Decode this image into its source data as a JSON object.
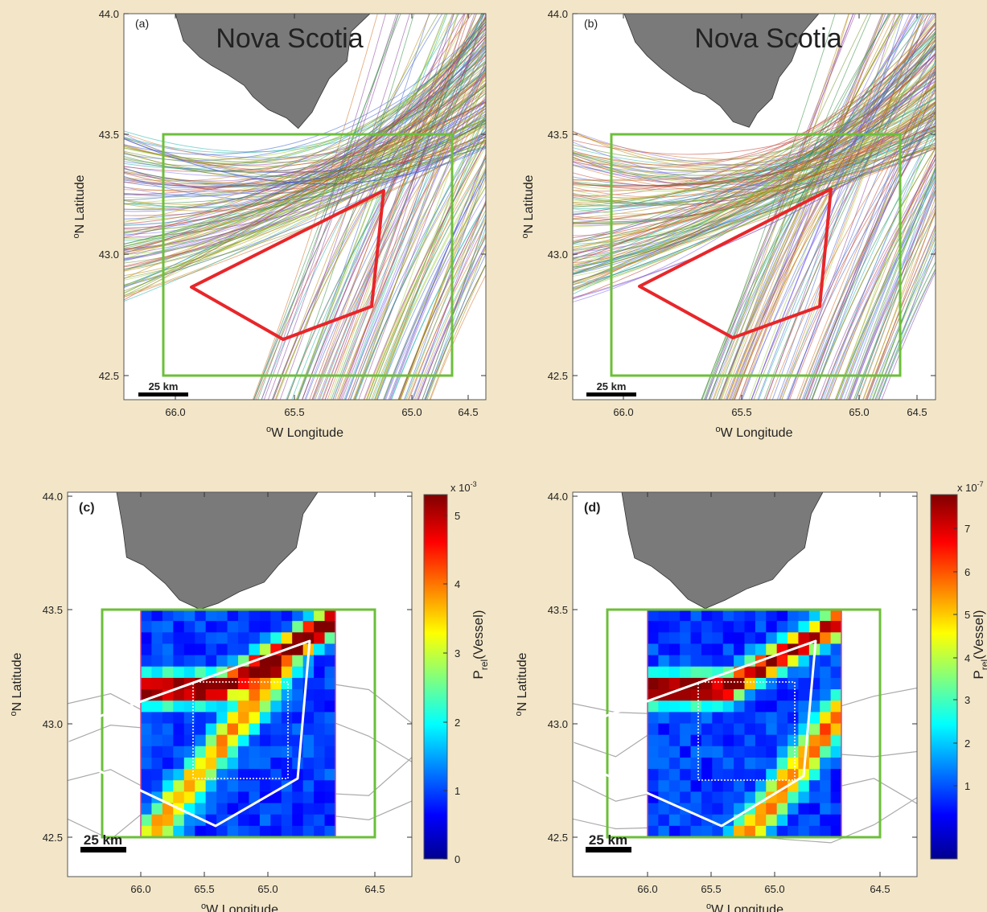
{
  "panels": [
    {
      "label": "(a)",
      "region": "Nova Scotia",
      "xticks": [
        "66.0",
        "65.5",
        "65.0",
        "64.5"
      ],
      "yticks": [
        "44.0",
        "43.5",
        "43.0",
        "42.5"
      ],
      "xlabel": {
        "sup": "o",
        "text": "W Longitude"
      },
      "ylabel": {
        "sup": "o",
        "text": "N Latitude"
      },
      "scale": "25 km"
    },
    {
      "label": "(b)",
      "region": "Nova Scotia",
      "xticks": [
        "66.0",
        "65.5",
        "65.0",
        "64.5"
      ],
      "yticks": [
        "44.0",
        "43.5",
        "43.0",
        "42.5"
      ],
      "xlabel": {
        "sup": "o",
        "text": "W Longitude"
      },
      "ylabel": {
        "sup": "o",
        "text": "N Latitude"
      },
      "scale": "25 km"
    },
    {
      "label": "(c)",
      "xticks": [
        "66.0",
        "65.5",
        "65.0",
        "64.5"
      ],
      "yticks": [
        "44.0",
        "43.5",
        "43.0",
        "42.5"
      ],
      "xlabel": {
        "sup": "o",
        "text": "W Longitude"
      },
      "ylabel": {
        "sup": "o",
        "text": "N Latitude"
      },
      "scale": "25 km",
      "colorbar": {
        "ticks": [
          "0",
          "1",
          "2",
          "3",
          "4",
          "5"
        ],
        "exponent": {
          "base": "x 10",
          "power": "-3"
        },
        "label": {
          "main": "P",
          "sub": "rel",
          "rest": "(Vessel)"
        }
      }
    },
    {
      "label": "(d)",
      "xticks": [
        "66.0",
        "65.5",
        "65.0",
        "64.5"
      ],
      "yticks": [
        "44.0",
        "43.5",
        "43.0",
        "42.5"
      ],
      "xlabel": {
        "sup": "o",
        "text": "W Longitude"
      },
      "ylabel": {
        "sup": "o",
        "text": "N Latitude"
      },
      "scale": "25 km",
      "colorbar": {
        "ticks": [
          "1",
          "2",
          "3",
          "4",
          "5",
          "6",
          "7"
        ],
        "exponent": {
          "base": "x 10",
          "power": "-7"
        },
        "label": {
          "main": "P",
          "sub": "rel",
          "rest": "(Vessel)"
        }
      }
    }
  ]
}
